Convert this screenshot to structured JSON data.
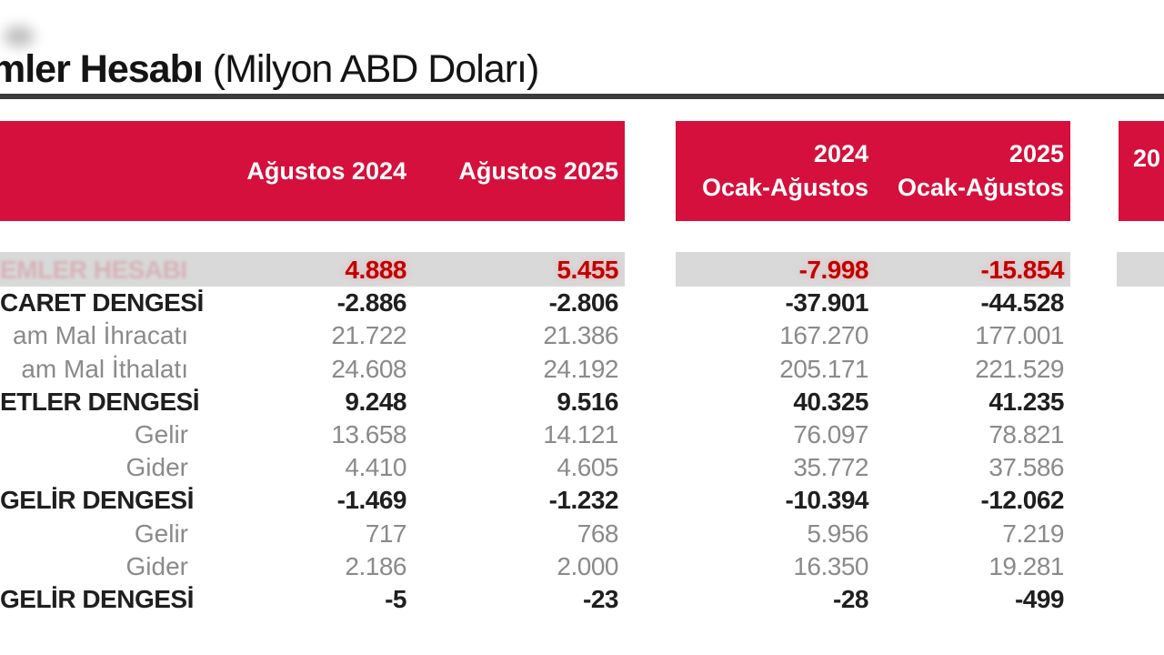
{
  "title": {
    "bold_fragment": "mler Hesabı",
    "unit": " (Milyon ABD Doları)"
  },
  "colors": {
    "header_red": "#d5103c",
    "header_text": "#ffffff",
    "highlight_band": "#d9d9d9",
    "highlight_value_red": "#c00000",
    "bold_text": "#1f1f1f",
    "sub_text": "#8a8a8a",
    "rule": "#3b3b3b"
  },
  "header": {
    "block1": {
      "col1": "Ağustos 2024",
      "col2": "Ağustos 2025"
    },
    "block2": {
      "col1_year": "2024",
      "col1_period": "Ocak-Ağustos",
      "col2_year": "2025",
      "col2_period": "Ocak-Ağustos"
    },
    "block3": {
      "year_fragment": "20"
    }
  },
  "table": {
    "columns": [
      "Ağustos 2024",
      "Ağustos 2025",
      "2024 Ocak-Ağustos",
      "2025 Ocak-Ağustos"
    ],
    "rows": [
      {
        "label": "EMLER HESABI",
        "style": "highlight",
        "values": [
          "4.888",
          "5.455",
          "-7.998",
          "-15.854"
        ]
      },
      {
        "label": "CARET DENGESİ",
        "style": "bold",
        "values": [
          "-2.886",
          "-2.806",
          "-37.901",
          "-44.528"
        ]
      },
      {
        "label": "am Mal İhracatı",
        "style": "sub",
        "values": [
          "21.722",
          "21.386",
          "167.270",
          "177.001"
        ]
      },
      {
        "label": "am Mal İthalatı",
        "style": "sub",
        "values": [
          "24.608",
          "24.192",
          "205.171",
          "221.529"
        ]
      },
      {
        "label": "ETLER DENGESİ",
        "style": "bold",
        "values": [
          "9.248",
          "9.516",
          "40.325",
          "41.235"
        ]
      },
      {
        "label": "Gelir",
        "style": "sub",
        "values": [
          "13.658",
          "14.121",
          "76.097",
          "78.821"
        ]
      },
      {
        "label": "Gider",
        "style": "sub",
        "values": [
          "4.410",
          "4.605",
          "35.772",
          "37.586"
        ]
      },
      {
        "label": "GELİR DENGESİ",
        "style": "bold",
        "values": [
          "-1.469",
          "-1.232",
          "-10.394",
          "-12.062"
        ]
      },
      {
        "label": "Gelir",
        "style": "sub",
        "values": [
          "717",
          "768",
          "5.956",
          "7.219"
        ]
      },
      {
        "label": "Gider",
        "style": "sub",
        "values": [
          "2.186",
          "2.000",
          "16.350",
          "19.281"
        ]
      },
      {
        "label": "GELİR DENGESİ",
        "style": "bold",
        "values": [
          "-5",
          "-23",
          "-28",
          "-499"
        ]
      }
    ]
  }
}
